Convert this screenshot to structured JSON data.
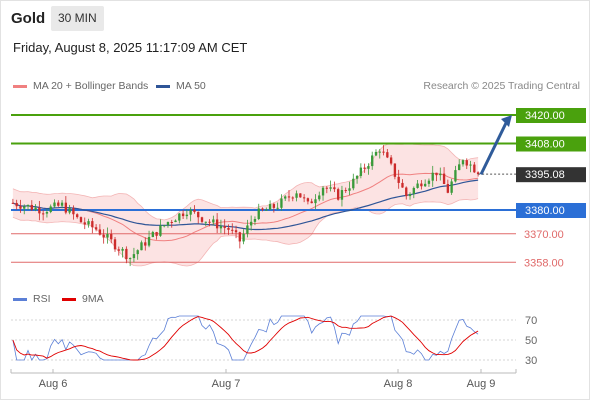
{
  "header": {
    "title": "Gold",
    "timeframe": "30 MIN"
  },
  "datetime": "Friday, August 8, 2025 11:17:09 AM CET",
  "legend": {
    "bb": {
      "label": "MA 20 + Bollinger Bands",
      "color": "#f08080"
    },
    "ma50": {
      "label": "MA 50",
      "color": "#2f5597"
    },
    "rsi": {
      "label": "RSI",
      "color": "#5b7fd6"
    },
    "rsi_ma": {
      "label": "9MA",
      "color": "#e00000"
    }
  },
  "source": "Research © 2025 Trading Central",
  "colors": {
    "resistance": "#4aa10d",
    "support_main": "#2b6fd6",
    "support": "#e06a6a",
    "up": "#3a9a3a",
    "down": "#cc2b2b",
    "arrow": "#2f5b9a",
    "current": "#333333"
  },
  "chart_data": [
    {
      "type": "candlestick",
      "ylim": [
        3348,
        3428
      ],
      "x_tick_labels": [
        "Aug 6",
        "Aug 7",
        "Aug 8",
        "Aug 9"
      ],
      "current_price": "3395.08",
      "levels": [
        {
          "label": "3420.00",
          "value": 3420,
          "kind": "resistance"
        },
        {
          "label": "3408.00",
          "value": 3408,
          "kind": "resistance"
        },
        {
          "label": "3380.00",
          "value": 3380,
          "kind": "support_main"
        },
        {
          "label": "3370.00",
          "value": 3370,
          "kind": "support"
        },
        {
          "label": "3358.00",
          "value": 3358,
          "kind": "support"
        }
      ],
      "ohlc": [],
      "ma50": [],
      "bb_mid": [],
      "bb_upper": [],
      "bb_lower": [],
      "forecast_arrow": {
        "from": 3395,
        "to": 3420
      }
    },
    {
      "type": "line",
      "series_names": [
        "RSI",
        "9MA"
      ],
      "y_tick_labels": [
        "70",
        "50",
        "30"
      ],
      "y_ticks": [
        70,
        50,
        30
      ],
      "ylim": [
        22,
        78
      ],
      "rsi": [],
      "rsi_ma": []
    }
  ]
}
